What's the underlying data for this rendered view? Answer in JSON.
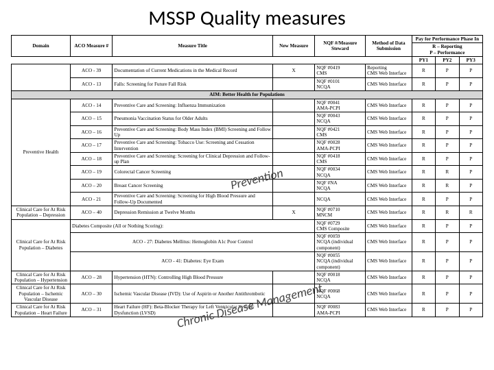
{
  "title": "MSSP Quality measures",
  "phaseHeader": "Pay for Performance Phase In",
  "phaseLegend": "R – Reporting\nP – Performance",
  "headers": {
    "domain": "Domain",
    "aco": "ACO Measure #",
    "mtitle": "Measure Title",
    "newm": "New Measure",
    "nqf": "NQF #/Measure Steward",
    "method": "Method of Data Submission",
    "py1": "PY1",
    "py2": "PY2",
    "py3": "PY3"
  },
  "annotations": {
    "prevention": "Prevention",
    "cdm": "Chronic Disease Management"
  },
  "sectionLabel": "AIM: Better Health for Populations",
  "domains": {
    "preventive": "Preventive Health",
    "dep": "Clinical Care for At Risk Population – Depression",
    "diab": "Clinical Care for At Risk Population – Diabetes",
    "htn": "Clinical Care for At Risk Population – Hypertension",
    "ivd": "Clinical Care for At Risk Population – Ischemic Vascular Disease",
    "hf": "Clinical Care for At Risk Population – Heart Failure"
  },
  "rows": [
    {
      "aco": "ACO - 39",
      "title": "Documentation of Current Medications in the Medical Record",
      "new": "X",
      "nqf": "NQF #0419\nCMS",
      "method": "Reporting\nCMS Web Interface",
      "py": [
        "R",
        "P",
        "P"
      ]
    },
    {
      "aco": "ACO - 13",
      "title": "Falls: Screening for Future Fall Risk",
      "new": "",
      "nqf": "NQF #0101\nNCQA",
      "method": "CMS Web Interface",
      "py": [
        "R",
        "P",
        "P"
      ]
    },
    {
      "aco": "ACO - 14",
      "title": "Preventive Care and Screening: Influenza Immunization",
      "new": "",
      "nqf": "NQF #0041\nAMA-PCPI",
      "method": "CMS Web Interface",
      "py": [
        "R",
        "P",
        "P"
      ]
    },
    {
      "aco": "ACO – 15",
      "title": "Pneumonia Vaccination Status for Older Adults",
      "new": "",
      "nqf": "NQF #0043\nNCQA",
      "method": "CMS Web Interface",
      "py": [
        "R",
        "P",
        "P"
      ]
    },
    {
      "aco": "ACO – 16",
      "title": "Preventive Care and Screening: Body Mass Index (BMI) Screening and Follow Up",
      "new": "",
      "nqf": "NQF #0421\nCMS",
      "method": "CMS Web Interface",
      "py": [
        "R",
        "P",
        "P"
      ]
    },
    {
      "aco": "ACO – 17",
      "title": "Preventive Care and Screening: Tobacco Use: Screening and Cessation Intervention",
      "new": "",
      "nqf": "NQF #0028\nAMA-PCPI",
      "method": "CMS Web Interface",
      "py": [
        "R",
        "P",
        "P"
      ]
    },
    {
      "aco": "ACO – 18",
      "title": "Preventive Care and Screening: Screening for Clinical Depression and Follow-up Plan",
      "new": "",
      "nqf": "NQF #0418\nCMS",
      "method": "CMS Web Interface",
      "py": [
        "R",
        "P",
        "P"
      ]
    },
    {
      "aco": "ACO – 19",
      "title": "Colorectal Cancer Screening",
      "new": "",
      "nqf": "NQF #0034\nNCQA",
      "method": "CMS Web Interface",
      "py": [
        "R",
        "R",
        "P"
      ]
    },
    {
      "aco": "ACO – 20",
      "title": "Breast Cancer Screening",
      "new": "",
      "nqf": "NQF #NA\nNCQA",
      "method": "CMS Web Interface",
      "py": [
        "R",
        "R",
        "P"
      ]
    },
    {
      "aco": "ACO - 21",
      "title": "Preventive Care and Screening: Screening for High Blood Pressure and Follow-Up Documented",
      "new": "",
      "nqf": "NCQA",
      "method": "CMS Web Interface",
      "py": [
        "R",
        "P",
        "P"
      ]
    },
    {
      "aco": "ACO – 40",
      "title": "Depression Remission at Twelve Months",
      "new": "X",
      "nqf": "NQF #0710\nMNCM",
      "method": "CMS Web Interface",
      "py": [
        "R",
        "R",
        "R"
      ]
    },
    {
      "title": "Diabetes Composite (All or Nothing Scoring):",
      "nqf": "NQF #0729\nCMS Composite",
      "method": "CMS Web Interface",
      "py": [
        "R",
        "P",
        "P"
      ],
      "merge": true
    },
    {
      "aco": "ACO - 27: Diabetes Mellitus: Hemoglobin A1c Poor Control",
      "nqf": "NQF #0059\nNCQA (individual component)",
      "method": "CMS Web Interface",
      "py": [
        "R",
        "P",
        "P"
      ],
      "sub": true
    },
    {
      "aco": "ACO - 41: Diabetes: Eye Exam",
      "nqf": "NQF #0055\nNCQA (individual component)",
      "method": "CMS Web Interface",
      "py": [
        "R",
        "P",
        "P"
      ],
      "sub": true
    },
    {
      "aco": "ACO – 28",
      "title": "Hypertension (HTN): Controlling High Blood Pressure",
      "new": "",
      "nqf": "NQF #0018\nNCQA",
      "method": "CMS Web Interface",
      "py": [
        "R",
        "P",
        "P"
      ]
    },
    {
      "aco": "ACO – 30",
      "title": "Ischemic Vascular Disease (IVD): Use of Aspirin or Another Antithrombotic",
      "new": "",
      "nqf": "NQF #0068\nNCQA",
      "method": "CMS Web Interface",
      "py": [
        "R",
        "P",
        "P"
      ]
    },
    {
      "aco": "ACO – 31",
      "title": "Heart Failure (HF): Beta-Blocker Therapy for Left Ventricular Systolic Dysfunction (LVSD)",
      "new": "",
      "nqf": "NQF #0083\nAMA-PCPI",
      "method": "CMS Web Interface",
      "py": [
        "R",
        "P",
        "P"
      ]
    }
  ]
}
